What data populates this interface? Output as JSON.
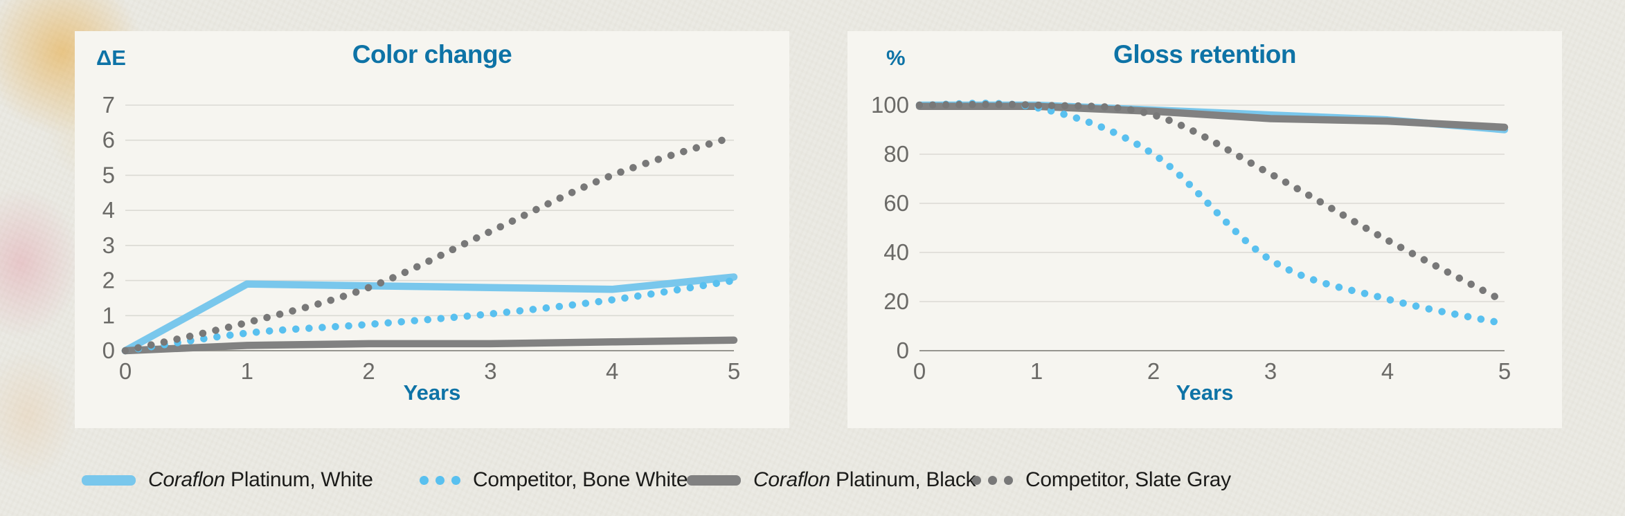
{
  "page": {
    "background_color": "#ebeae3",
    "panel_color": "#f6f5f0",
    "accent_blue": "#0e73a6",
    "tick_color": "#6b6a67"
  },
  "legend": {
    "items": [
      {
        "label_italic": "Coraflon",
        "label_rest": " Platinum, White",
        "full_label": "Coraflon Platinum, White",
        "style": "solid",
        "color": "#79c7ec"
      },
      {
        "label_italic": "",
        "label_rest": "Competitor, Bone White",
        "full_label": "Competitor, Bone White",
        "style": "dotted",
        "color": "#59c0ef"
      },
      {
        "label_italic": "Coraflon",
        "label_rest": " Platinum, Black",
        "full_label": "Coraflon Platinum, Black",
        "style": "solid",
        "color": "#818181"
      },
      {
        "label_italic": "",
        "label_rest": "Competitor, Slate Gray",
        "full_label": "Competitor, Slate Gray",
        "style": "dotted",
        "color": "#787878"
      }
    ]
  },
  "chart_data": [
    {
      "type": "line",
      "title": "Color change",
      "unit_label": "ΔE",
      "xlabel": "Years",
      "x": [
        0,
        1,
        2,
        3,
        4,
        5
      ],
      "xticks": [
        0,
        1,
        2,
        3,
        4,
        5
      ],
      "ylim": [
        0,
        7
      ],
      "yticks": [
        0,
        1,
        2,
        3,
        4,
        5,
        6,
        7
      ],
      "grid": true,
      "legend_position": "bottom-shared",
      "series": [
        {
          "name": "Coraflon Platinum, White",
          "style": "solid",
          "color": "#79c7ec",
          "values": [
            0,
            1.9,
            1.85,
            1.8,
            1.75,
            2.1
          ]
        },
        {
          "name": "Coraflon Platinum, Black",
          "style": "solid",
          "color": "#818181",
          "values": [
            0,
            0.15,
            0.2,
            0.2,
            0.25,
            0.3
          ]
        },
        {
          "name": "Competitor, Bone White",
          "style": "dotted",
          "color": "#59c0ef",
          "values": [
            0,
            0.5,
            0.75,
            1.05,
            1.45,
            2.0
          ]
        },
        {
          "name": "Competitor, Slate Gray",
          "style": "dotted",
          "color": "#787878",
          "values": [
            0,
            0.8,
            1.8,
            3.4,
            5.0,
            6.1
          ]
        }
      ]
    },
    {
      "type": "line",
      "title": "Gloss retention",
      "unit_label": "%",
      "xlabel": "Years",
      "x": [
        0,
        1,
        2,
        3,
        4,
        5
      ],
      "xticks": [
        0,
        1,
        2,
        3,
        4,
        5
      ],
      "ylim": [
        0,
        100
      ],
      "yticks": [
        0,
        20,
        40,
        60,
        80,
        100
      ],
      "grid": true,
      "legend_position": "bottom-shared",
      "series": [
        {
          "name": "Coraflon Platinum, White",
          "style": "solid",
          "color": "#79c7ec",
          "values": [
            100,
            100,
            98,
            96,
            94,
            90
          ]
        },
        {
          "name": "Coraflon Platinum, Black",
          "style": "solid",
          "color": "#818181",
          "values": [
            99.5,
            99.5,
            97.5,
            94.5,
            93.5,
            91
          ]
        },
        {
          "name": "Competitor, Bone White",
          "style": "dotted",
          "color": "#59c0ef",
          "values": [
            100,
            99,
            80,
            37,
            21,
            11
          ]
        },
        {
          "name": "Competitor, Slate Gray",
          "style": "dotted",
          "color": "#787878",
          "values": [
            100,
            100,
            96,
            72,
            45,
            20
          ]
        }
      ]
    }
  ]
}
